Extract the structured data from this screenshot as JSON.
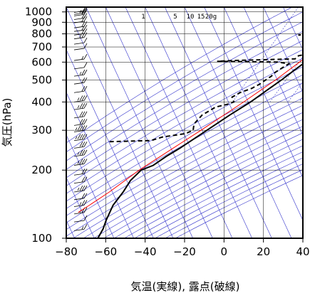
{
  "chart_data": {
    "type": "line",
    "subtype": "skew-t log-p thermodynamic diagram",
    "xlabel": "気温(実線), 露点(破線)",
    "ylabel": "気圧(hPa)",
    "xlim": [
      -80,
      40
    ],
    "ylim": [
      1050,
      100
    ],
    "y_scale": "log",
    "x_ticks": [
      "−80",
      "−60",
      "−40",
      "−20",
      "0",
      "20",
      "40"
    ],
    "x_tick_values": [
      -80,
      -60,
      -40,
      -20,
      0,
      20,
      40
    ],
    "y_ticks": [
      "100",
      "200",
      "300",
      "400",
      "500",
      "600",
      "700",
      "800",
      "900",
      "1000"
    ],
    "y_tick_values": [
      100,
      200,
      300,
      400,
      500,
      600,
      700,
      800,
      900,
      1000
    ],
    "mixing_ratio_labels": [
      "1",
      "5",
      "10",
      "15",
      "20g"
    ],
    "mixing_ratio_values": [
      1,
      5,
      10,
      15,
      20
    ],
    "grid": true,
    "colors": {
      "temperature": "#000000",
      "dewpoint": "#000000",
      "parcel": "#ff0000",
      "guide_lines": "#3333cc",
      "grid": "#000000"
    },
    "series": [
      {
        "style": "solid",
        "points": [
          [
            1000,
            22
          ],
          [
            975,
            23
          ],
          [
            950,
            22.5
          ],
          [
            925,
            24
          ],
          [
            900,
            21
          ],
          [
            875,
            18.5
          ],
          [
            850,
            16.5
          ],
          [
            825,
            14.5
          ],
          [
            800,
            13
          ],
          [
            775,
            11
          ],
          [
            750,
            9.5
          ],
          [
            725,
            8
          ],
          [
            700,
            6.5
          ],
          [
            650,
            3.5
          ],
          [
            600,
            0
          ],
          [
            550,
            -4
          ],
          [
            500,
            -8
          ],
          [
            450,
            -13
          ],
          [
            400,
            -18.5
          ],
          [
            350,
            -26
          ],
          [
            300,
            -34
          ],
          [
            250,
            -43.5
          ],
          [
            230,
            -48.5
          ],
          [
            210,
            -53
          ],
          [
            200,
            -58
          ],
          [
            180,
            -61
          ],
          [
            160,
            -62
          ],
          [
            140,
            -64
          ],
          [
            120,
            -64
          ],
          [
            110,
            -63.5
          ],
          [
            100,
            -64
          ]
        ]
      },
      {
        "style": "dashed",
        "points": [
          [
            1000,
            20
          ],
          [
            975,
            19
          ],
          [
            950,
            20
          ],
          [
            925,
            16
          ],
          [
            900,
            15
          ],
          [
            890,
            2
          ],
          [
            880,
            10
          ],
          [
            860,
            13
          ],
          [
            850,
            8
          ],
          [
            830,
            12
          ],
          [
            810,
            5
          ],
          [
            800,
            0
          ],
          [
            790,
            -10
          ],
          [
            785,
            1
          ],
          [
            780,
            4
          ],
          [
            770,
            6
          ],
          [
            760,
            5
          ],
          [
            740,
            6
          ],
          [
            720,
            3
          ],
          [
            700,
            4
          ],
          [
            680,
            7
          ],
          [
            660,
            2
          ],
          [
            640,
            -5
          ],
          [
            620,
            -6
          ],
          [
            610,
            -37
          ],
          [
            605,
            -45
          ],
          [
            600,
            -14
          ],
          [
            590,
            -8
          ],
          [
            570,
            -10
          ],
          [
            540,
            -13
          ],
          [
            520,
            -14
          ],
          [
            500,
            -16
          ],
          [
            480,
            -18
          ],
          [
            460,
            -21
          ],
          [
            440,
            -26
          ],
          [
            420,
            -29
          ],
          [
            410,
            -28
          ],
          [
            400,
            -27
          ],
          [
            390,
            -30
          ],
          [
            380,
            -35
          ],
          [
            350,
            -40
          ],
          [
            320,
            -42
          ],
          [
            300,
            -41
          ],
          [
            290,
            -44
          ],
          [
            280,
            -55
          ],
          [
            270,
            -60
          ],
          [
            267,
            -82
          ]
        ]
      },
      {
        "style": "parcel",
        "points": [
          [
            1000,
            21
          ],
          [
            900,
            15
          ],
          [
            850,
            12
          ],
          [
            800,
            9
          ],
          [
            700,
            3
          ],
          [
            600,
            -3
          ],
          [
            500,
            -11
          ],
          [
            400,
            -22
          ],
          [
            300,
            -37
          ],
          [
            250,
            -47
          ],
          [
            200,
            -59
          ],
          [
            160,
            -69
          ],
          [
            140,
            -76
          ],
          [
            130,
            -80
          ]
        ]
      }
    ],
    "wind_barbs": [
      {
        "p": 995,
        "speed": 10
      },
      {
        "p": 975,
        "speed": 15
      },
      {
        "p": 960,
        "speed": 20
      },
      {
        "p": 925,
        "speed": 20
      },
      {
        "p": 895,
        "speed": 20
      },
      {
        "p": 850,
        "speed": 20
      },
      {
        "p": 820,
        "speed": 20
      },
      {
        "p": 790,
        "speed": 20
      },
      {
        "p": 760,
        "speed": 15
      },
      {
        "p": 720,
        "speed": 10
      },
      {
        "p": 680,
        "speed": 10
      },
      {
        "p": 610,
        "speed": 5
      },
      {
        "p": 560,
        "speed": 10
      },
      {
        "p": 520,
        "speed": 15
      },
      {
        "p": 480,
        "speed": 20
      },
      {
        "p": 440,
        "speed": 20
      },
      {
        "p": 400,
        "speed": 25
      },
      {
        "p": 370,
        "speed": 25
      },
      {
        "p": 340,
        "speed": 30
      },
      {
        "p": 315,
        "speed": 30
      },
      {
        "p": 295,
        "speed": 35
      },
      {
        "p": 270,
        "speed": 35
      },
      {
        "p": 250,
        "speed": 30
      },
      {
        "p": 230,
        "speed": 25
      },
      {
        "p": 210,
        "speed": 25
      },
      {
        "p": 190,
        "speed": 20
      },
      {
        "p": 175,
        "speed": 20
      },
      {
        "p": 160,
        "speed": 25
      },
      {
        "p": 148,
        "speed": 20
      },
      {
        "p": 138,
        "speed": 15
      },
      {
        "p": 128,
        "speed": 15
      },
      {
        "p": 118,
        "speed": 10
      },
      {
        "p": 108,
        "speed": 5
      }
    ]
  }
}
